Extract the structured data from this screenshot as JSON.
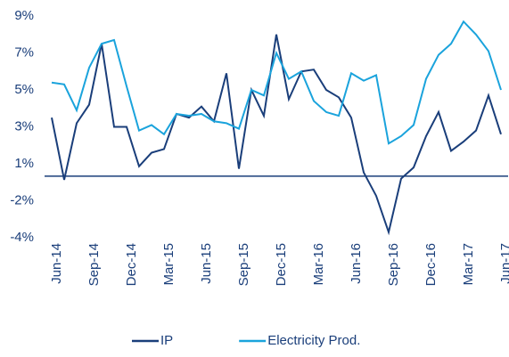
{
  "chart_data": {
    "type": "line",
    "categories": [
      "Jun-14",
      null,
      null,
      "Sep-14",
      null,
      null,
      "Dec-14",
      null,
      null,
      "Mar-15",
      null,
      null,
      "Jun-15",
      null,
      null,
      "Sep-15",
      null,
      null,
      "Dec-15",
      null,
      null,
      "Mar-16",
      null,
      null,
      "Jun-16",
      null,
      null,
      "Sep-16",
      null,
      null,
      "Dec-16",
      null,
      null,
      "Mar-17",
      null,
      null,
      "Jun-17"
    ],
    "series": [
      {
        "name": "IP",
        "color": "#1a3e7a",
        "values": [
          3.5,
          -0.3,
          3.2,
          4.2,
          7.5,
          3.0,
          3.0,
          0.8,
          1.6,
          1.8,
          3.7,
          3.5,
          4.1,
          3.3,
          5.9,
          0.6,
          5.0,
          3.6,
          8.0,
          4.5,
          6.0,
          6.1,
          5.0,
          4.6,
          3.5,
          0.3,
          -1.6,
          -3.7,
          -0.2,
          0.7,
          2.5,
          3.8,
          1.7,
          2.2,
          2.8,
          4.7,
          2.6
        ]
      },
      {
        "name": "Electricity Prod.",
        "color": "#1aa3dc",
        "values": [
          5.4,
          5.3,
          3.9,
          6.2,
          7.5,
          7.7,
          5.2,
          2.8,
          3.1,
          2.6,
          3.7,
          3.6,
          3.7,
          3.3,
          3.2,
          2.9,
          5.0,
          4.7,
          7.0,
          5.6,
          6.0,
          4.4,
          3.8,
          3.6,
          5.9,
          5.5,
          5.8,
          2.1,
          2.5,
          3.1,
          5.6,
          6.9,
          7.5,
          8.7,
          8.0,
          7.1,
          5.0
        ]
      }
    ],
    "ylim": [
      -4,
      9
    ],
    "yticks": [
      {
        "value": 9,
        "label": "9%"
      },
      {
        "value": 7,
        "label": "7%"
      },
      {
        "value": 5,
        "label": "5%"
      },
      {
        "value": 3,
        "label": "3%"
      },
      {
        "value": 1,
        "label": "1%"
      },
      {
        "value": -2,
        "label": "-2%"
      },
      {
        "value": -4,
        "label": "-4%"
      }
    ],
    "legend": "bottom"
  }
}
